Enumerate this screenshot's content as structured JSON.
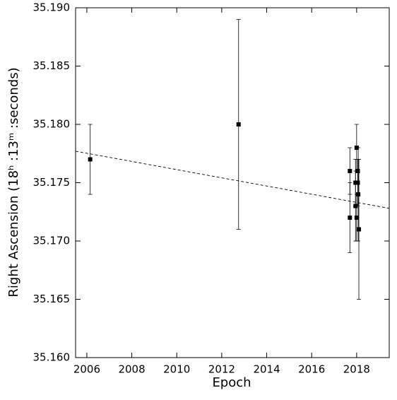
{
  "chart_data": {
    "type": "scatter",
    "xlabel": "Epoch",
    "ylabel": "Right Ascension (18ʰ :13ᵐ :seconds)",
    "xlim": [
      2005.5,
      2019.45
    ],
    "ylim": [
      35.16,
      35.19
    ],
    "xticks": [
      2006,
      2008,
      2010,
      2012,
      2014,
      2016,
      2018
    ],
    "yticks": [
      {
        "value": 35.16,
        "label": "35.160"
      },
      35.165,
      {
        "value": 35.17,
        "label": "35.170"
      },
      35.175,
      {
        "value": 35.18,
        "label": "35.180"
      },
      35.185,
      {
        "value": 35.19,
        "label": "35.190"
      }
    ],
    "series": [
      {
        "color": "#000000",
        "x": [
          2006.15,
          2012.75,
          2017.7,
          2017.7,
          2017.95,
          2017.95,
          2018.0,
          2018.05,
          2018.05,
          2018.07,
          2018.0,
          2018.1
        ],
        "values": [
          35.177,
          35.18,
          35.176,
          35.172,
          35.175,
          35.173,
          35.178,
          35.176,
          35.175,
          35.174,
          35.172,
          35.171
        ],
        "errors": [
          0.003,
          0.009,
          0.002,
          0.003,
          0.002,
          0.003,
          0.002,
          0.001,
          0.002,
          0.004,
          0.002,
          0.006
        ]
      }
    ],
    "fit": {
      "color": "#000000",
      "x": [
        2005.5,
        2019.45
      ],
      "values": [
        35.1777,
        35.1728
      ]
    }
  }
}
